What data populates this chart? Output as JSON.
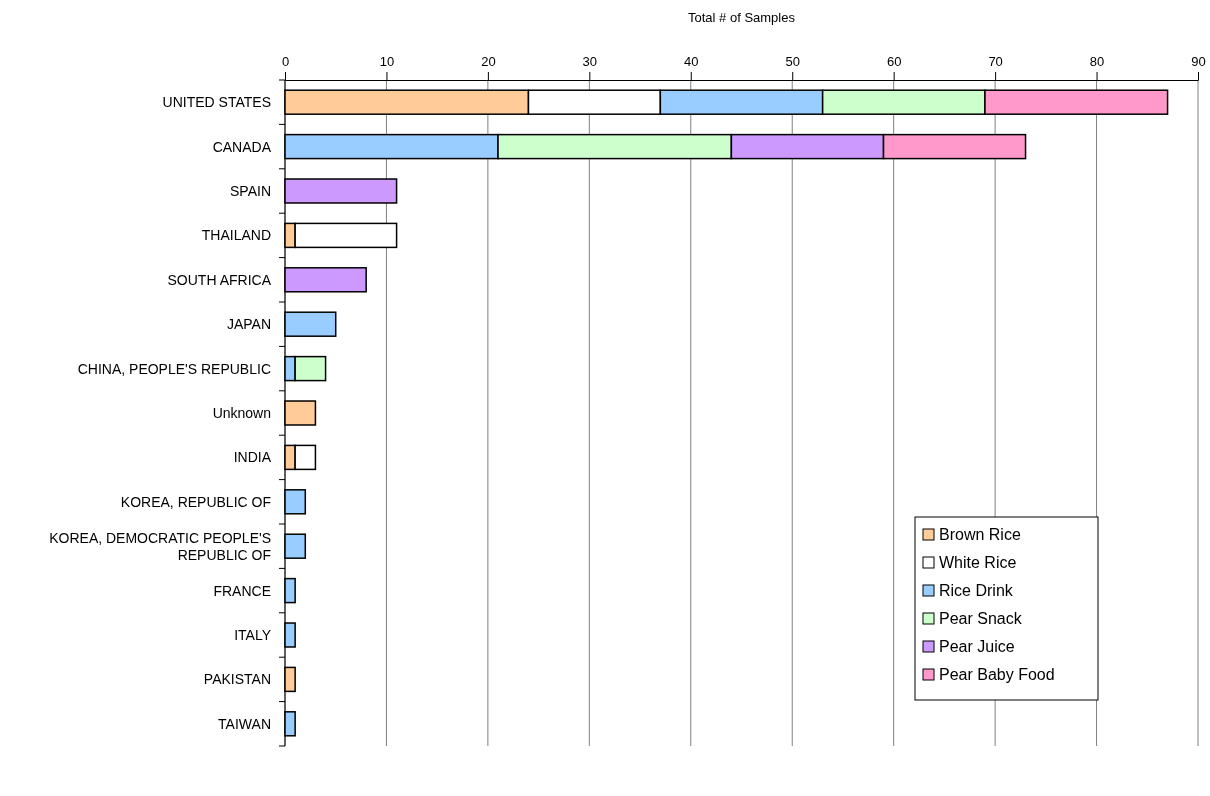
{
  "chart_data": {
    "type": "bar",
    "orientation": "horizontal",
    "stacked": true,
    "xlabel": "Total # of Samples",
    "categories": [
      "UNITED STATES",
      "CANADA",
      "SPAIN",
      "THAILAND",
      "SOUTH AFRICA",
      "JAPAN",
      "CHINA, PEOPLE'S REPUBLIC",
      "Unknown",
      "INDIA",
      "KOREA, REPUBLIC OF",
      "KOREA, DEMOCRATIC PEOPLE'S REPUBLIC OF",
      "FRANCE",
      "ITALY",
      "PAKISTAN",
      "TAIWAN"
    ],
    "series": [
      {
        "name": "Brown Rice",
        "color": "#ffcc99",
        "values": [
          24,
          null,
          null,
          1,
          null,
          null,
          null,
          3,
          1,
          null,
          null,
          null,
          null,
          1,
          null
        ]
      },
      {
        "name": "White Rice",
        "color": "#ffffff",
        "values": [
          13,
          null,
          null,
          10,
          null,
          null,
          null,
          null,
          2,
          null,
          null,
          null,
          null,
          null,
          null
        ]
      },
      {
        "name": "Rice Drink",
        "color": "#99ccff",
        "values": [
          16,
          21,
          null,
          null,
          null,
          5,
          1,
          null,
          null,
          2,
          2,
          1,
          1,
          null,
          1
        ]
      },
      {
        "name": "Pear Snack",
        "color": "#ccffcc",
        "values": [
          16,
          23,
          null,
          null,
          null,
          null,
          3,
          null,
          null,
          null,
          null,
          null,
          null,
          null,
          null
        ]
      },
      {
        "name": "Pear Juice",
        "color": "#cc99ff",
        "values": [
          null,
          15,
          11,
          null,
          8,
          null,
          null,
          null,
          null,
          null,
          null,
          null,
          null,
          null,
          null
        ]
      },
      {
        "name": "Pear Baby Food",
        "color": "#ff99cc",
        "values": [
          18,
          14,
          null,
          null,
          null,
          null,
          null,
          null,
          null,
          null,
          null,
          null,
          null,
          null,
          null
        ]
      }
    ],
    "xlim": [
      0,
      90
    ],
    "xticks": [
      0,
      10,
      20,
      30,
      40,
      50,
      60,
      70,
      80,
      90
    ],
    "grid": "x",
    "legend": "bottom right"
  }
}
